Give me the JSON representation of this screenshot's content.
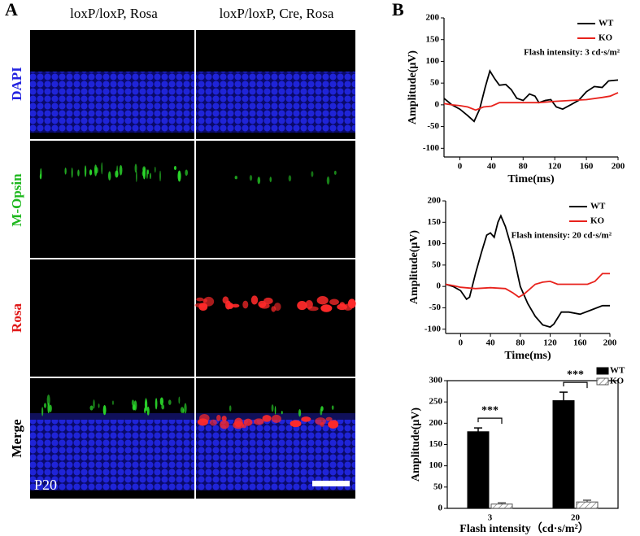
{
  "panel_a": {
    "label": "A",
    "columns": [
      "loxP/loxP, Rosa",
      "loxP/loxP, Cre, Rosa"
    ],
    "rows": [
      "DAPI",
      "M-Opsin",
      "Rosa",
      "Merge"
    ],
    "age": "P20"
  },
  "panel_b": {
    "label": "B"
  },
  "chart_data": [
    {
      "type": "line",
      "xlabel": "Time(ms)",
      "ylabel": "Amplitude(μV)",
      "annotation": "Flash intensity: 3 cd·s/m²",
      "xlim": [
        -20,
        200
      ],
      "xticks": [
        0,
        40,
        80,
        120,
        160,
        200
      ],
      "ylim": [
        -120,
        200
      ],
      "yticks": [
        -100,
        -50,
        0,
        50,
        100,
        150,
        200
      ],
      "legend": "upper right",
      "series": [
        {
          "name": "WT",
          "color": "#000000",
          "x": [
            -20,
            -10,
            0,
            10,
            18,
            25,
            32,
            38,
            44,
            50,
            58,
            65,
            72,
            80,
            88,
            95,
            100,
            108,
            115,
            122,
            130,
            140,
            150,
            160,
            170,
            180,
            188,
            200
          ],
          "values": [
            15,
            0,
            -10,
            -25,
            -38,
            -10,
            40,
            78,
            60,
            45,
            47,
            35,
            15,
            10,
            25,
            20,
            5,
            10,
            12,
            -5,
            -10,
            0,
            10,
            30,
            42,
            40,
            55,
            57
          ]
        },
        {
          "name": "KO",
          "color": "#e8221c",
          "x": [
            -20,
            -10,
            0,
            10,
            20,
            30,
            40,
            50,
            60,
            80,
            100,
            120,
            140,
            160,
            180,
            190,
            200
          ],
          "values": [
            3,
            0,
            -2,
            -5,
            -12,
            -5,
            -3,
            5,
            5,
            5,
            5,
            8,
            10,
            12,
            17,
            20,
            28
          ]
        }
      ]
    },
    {
      "type": "line",
      "xlabel": "Time(ms)",
      "ylabel": "Amplitude(μV)",
      "annotation": "Flash intensity: 20 cd·s/m²",
      "xlim": [
        -20,
        200
      ],
      "xticks": [
        0,
        40,
        80,
        120,
        160,
        200
      ],
      "ylim": [
        -110,
        200
      ],
      "yticks": [
        -100,
        -50,
        0,
        50,
        100,
        150,
        200
      ],
      "legend": "upper right",
      "series": [
        {
          "name": "WT",
          "color": "#000000",
          "x": [
            -20,
            -10,
            0,
            8,
            12,
            20,
            28,
            35,
            40,
            45,
            50,
            54,
            60,
            70,
            80,
            90,
            100,
            110,
            120,
            125,
            135,
            145,
            160,
            175,
            190,
            200
          ],
          "values": [
            5,
            0,
            -10,
            -30,
            -25,
            30,
            80,
            120,
            125,
            115,
            150,
            165,
            140,
            80,
            0,
            -40,
            -70,
            -90,
            -95,
            -88,
            -60,
            -60,
            -65,
            -55,
            -45,
            -45
          ]
        },
        {
          "name": "KO",
          "color": "#e8221c",
          "x": [
            -20,
            -10,
            0,
            20,
            40,
            60,
            70,
            78,
            85,
            100,
            110,
            120,
            130,
            150,
            170,
            180,
            190,
            200
          ],
          "values": [
            5,
            2,
            -2,
            -5,
            -3,
            -5,
            -15,
            -25,
            -18,
            5,
            10,
            12,
            5,
            5,
            5,
            12,
            30,
            30
          ]
        }
      ]
    },
    {
      "type": "bar",
      "xlabel": "Flash intensity（cd·s/m²）",
      "ylabel": "Amplitude(μV)",
      "categories": [
        "3",
        "20"
      ],
      "ylim": [
        0,
        300
      ],
      "yticks": [
        0,
        50,
        100,
        150,
        200,
        250,
        300
      ],
      "legend": "upper right",
      "significance": [
        "***",
        "***"
      ],
      "series": [
        {
          "name": "WT",
          "color": "#000000",
          "hatch": false,
          "values": [
            180,
            253
          ],
          "errors": [
            9,
            20
          ]
        },
        {
          "name": "KO",
          "color": "#555555",
          "hatch": true,
          "values": [
            10,
            15
          ],
          "errors": [
            3,
            4
          ]
        }
      ]
    }
  ]
}
